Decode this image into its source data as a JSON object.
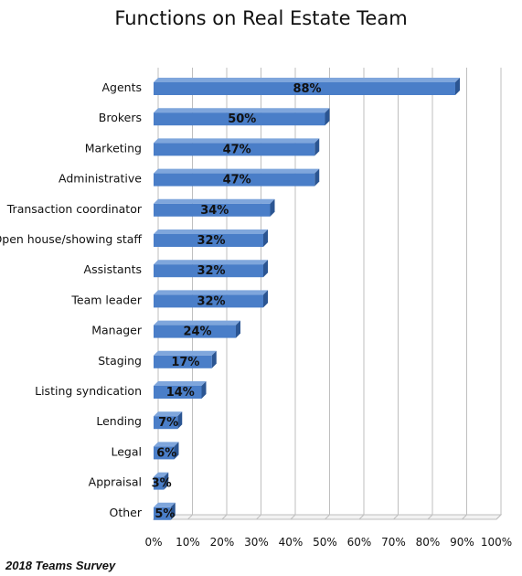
{
  "title": "Functions on Real Estate Team",
  "footer_note": "2018 Teams Survey",
  "colors": {
    "bar_front": "#4a7ec8",
    "bar_top": "#7fa6dc",
    "bar_side": "#2b5592",
    "grid": "#bfbfbf",
    "text": "#111111"
  },
  "chart_data": {
    "type": "bar",
    "orientation": "horizontal",
    "title": "Functions on Real Estate Team",
    "categories": [
      "Agents",
      "Brokers",
      "Marketing",
      "Administrative",
      "Transaction coordinator",
      "Open house/showing staff",
      "Assistants",
      "Team leader",
      "Manager",
      "Staging",
      "Listing syndication",
      "Lending",
      "Legal",
      "Appraisal",
      "Other"
    ],
    "values": [
      88,
      50,
      47,
      47,
      34,
      32,
      32,
      32,
      24,
      17,
      14,
      7,
      6,
      3,
      5
    ],
    "data_labels": [
      "88%",
      "50%",
      "47%",
      "47%",
      "34%",
      "32%",
      "32%",
      "32%",
      "24%",
      "17%",
      "14%",
      "7%",
      "6%",
      "3%",
      "5%"
    ],
    "x_ticks": [
      "0%",
      "10%",
      "20%",
      "30%",
      "40%",
      "50%",
      "60%",
      "70%",
      "80%",
      "90%",
      "100%"
    ],
    "xlim": [
      0,
      100
    ],
    "grid": true,
    "legend": "none"
  }
}
